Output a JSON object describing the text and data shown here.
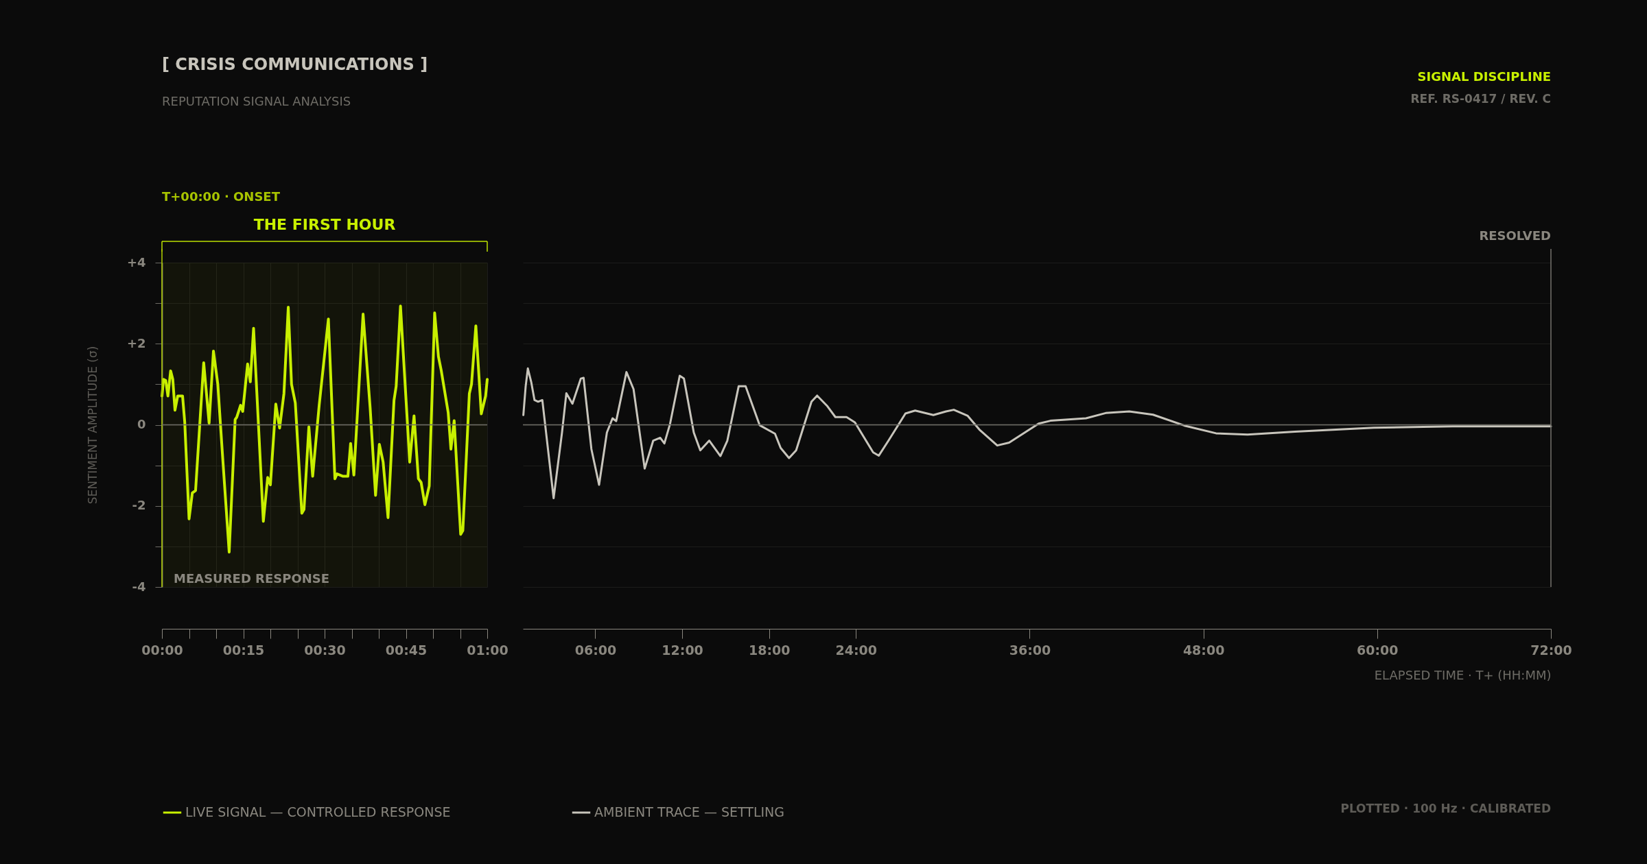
{
  "chart_data": [
    {
      "type": "line",
      "title": "[ CRISIS COMMUNICATIONS ]",
      "subtitle": "REPUTATION SIGNAL ANALYSIS",
      "ylabel": "SENTIMENT AMPLITUDE (σ)",
      "annotations": [
        "MEASURED RESPONSE"
      ],
      "xlim": [
        0,
        60
      ],
      "xticks": [
        {
          "value": 0,
          "label": "00:00"
        },
        {
          "value": 5,
          "label": null
        },
        {
          "value": 10,
          "label": null
        },
        {
          "value": 15,
          "label": "00:15"
        },
        {
          "value": 20,
          "label": null
        },
        {
          "value": 25,
          "label": null
        },
        {
          "value": 30,
          "label": "00:30"
        },
        {
          "value": 35,
          "label": null
        },
        {
          "value": 40,
          "label": null
        },
        {
          "value": 45,
          "label": "00:45"
        },
        {
          "value": 50,
          "label": null
        },
        {
          "value": 55,
          "label": null
        },
        {
          "value": 60,
          "label": "01:00"
        }
      ],
      "ylim": [
        -4,
        4
      ],
      "yticks": [
        {
          "value": -4,
          "label": "-4"
        },
        {
          "value": -3,
          "label": null
        },
        {
          "value": -2,
          "label": "-2"
        },
        {
          "value": -1,
          "label": null
        },
        0,
        {
          "value": 1,
          "label": null
        },
        {
          "value": 2,
          "label": "+2"
        },
        {
          "value": 3,
          "label": null
        },
        {
          "value": 4,
          "label": "+4"
        }
      ],
      "grid": true,
      "legend": "bottom",
      "bands": [
        {
          "axis": "x",
          "from": 0,
          "to": 60,
          "label": "THE FIRST HOUR",
          "color": "#c8f000"
        }
      ],
      "ref_lines": [
        {
          "axis": "x",
          "value": 0,
          "label": "T+00:00 · ONSET",
          "color": "#a8c400"
        },
        {
          "axis": "y",
          "value": 0,
          "color": "#6e6c66"
        }
      ],
      "series": [
        {
          "name": "LIVE SIGNAL — CONTROLLED RESPONSE",
          "color": "#c8f000",
          "x": [
            0,
            0.3,
            0.7,
            1.1,
            1.6,
            2.0,
            2.4,
            2.9,
            3.8,
            4.2,
            5.0,
            5.6,
            6.2,
            7.7,
            8.7,
            9.5,
            10.3,
            11.2,
            12.4,
            13.5,
            13.8,
            14.5,
            14.9,
            15.8,
            16.3,
            16.9,
            18.7,
            19.5,
            20.0,
            21.0,
            21.7,
            22.5,
            23.3,
            23.9,
            24.6,
            25.8,
            26.2,
            27.1,
            27.8,
            29.0,
            30.7,
            31.9,
            32.3,
            33.4,
            34.3,
            34.8,
            35.4,
            37.1,
            38.4,
            39.4,
            40.1,
            40.8,
            41.7,
            42.8,
            43.2,
            44.0,
            45.7,
            46.5,
            47.3,
            47.8,
            48.5,
            49.3,
            50.3,
            51.0,
            51.5,
            52.8,
            53.3,
            53.9,
            55.1,
            55.5,
            56.7,
            57.1,
            57.9,
            58.9,
            59.7,
            60.0
          ],
          "values": [
            0.71,
            1.12,
            1.09,
            0.71,
            1.33,
            1.12,
            0.36,
            0.71,
            0.71,
            0.07,
            -2.32,
            -1.68,
            -1.62,
            1.53,
            0.04,
            1.82,
            1.0,
            -0.81,
            -3.14,
            0.13,
            0.19,
            0.48,
            0.33,
            1.5,
            1.06,
            2.38,
            -2.38,
            -1.3,
            -1.48,
            0.51,
            -0.08,
            0.77,
            2.9,
            1.0,
            0.54,
            -2.18,
            -2.09,
            -0.05,
            -1.27,
            0.48,
            2.61,
            -1.33,
            -1.21,
            -1.27,
            -1.27,
            -0.46,
            -1.24,
            2.73,
            0.42,
            -1.74,
            -0.48,
            -0.92,
            -2.29,
            0.6,
            0.95,
            2.93,
            -0.92,
            0.22,
            -1.33,
            -1.42,
            -1.97,
            -1.51,
            2.76,
            1.68,
            1.35,
            0.3,
            -0.6,
            0.1,
            -2.7,
            -2.61,
            0.77,
            1.0,
            2.44,
            0.27,
            0.71,
            1.12
          ]
        }
      ]
    },
    {
      "type": "line",
      "xlabel": "ELAPSED TIME · T+ (HH:MM)",
      "annotations": [
        "SIGNAL DISCIPLINE",
        "REF. RS-0417 / REV. C",
        "PLOTTED · 100 Hz · CALIBRATED"
      ],
      "xlim": [
        1,
        72
      ],
      "xticks": [
        {
          "value": 6,
          "label": "06:00"
        },
        {
          "value": 12,
          "label": "12:00"
        },
        {
          "value": 18,
          "label": "18:00"
        },
        {
          "value": 24,
          "label": "24:00"
        },
        {
          "value": 36,
          "label": "36:00"
        },
        {
          "value": 48,
          "label": "48:00"
        },
        {
          "value": 60,
          "label": "60:00"
        },
        {
          "value": 72,
          "label": "72:00"
        }
      ],
      "ylim": [
        -4,
        4
      ],
      "yticks": [
        -4,
        -3,
        -2,
        -1,
        0,
        1,
        2,
        3,
        4
      ],
      "tick_labels": "x",
      "grid": "y",
      "legend": "bottom",
      "ref_lines": [
        {
          "axis": "x",
          "value": 72,
          "label": "RESOLVED",
          "color": "#6e6c66"
        },
        {
          "axis": "y",
          "value": 0,
          "color": "#6e6c66"
        }
      ],
      "series": [
        {
          "name": "AMBIENT TRACE — SETTLING",
          "color": "#c8c5bc",
          "x": [
            1.03,
            1.19,
            1.34,
            1.57,
            1.8,
            2.05,
            2.34,
            3.12,
            3.7,
            4.0,
            4.42,
            5.0,
            5.19,
            5.73,
            6.26,
            6.8,
            7.19,
            7.44,
            8.15,
            8.64,
            9.41,
            10.0,
            10.48,
            10.77,
            11.16,
            11.83,
            12.12,
            12.8,
            13.25,
            13.87,
            14.64,
            15.12,
            15.9,
            16.38,
            17.35,
            18.41,
            18.8,
            19.38,
            19.87,
            20.93,
            21.32,
            22.0,
            22.58,
            23.35,
            23.93,
            25.19,
            25.58,
            26.25,
            27.42,
            28.09,
            29.35,
            30.22,
            30.76,
            31.72,
            32.53,
            33.76,
            34.58,
            36.62,
            37.43,
            39.89,
            41.25,
            42.88,
            44.52,
            46.69,
            48.87,
            51.05,
            54.32,
            59.77,
            65.21,
            72
          ],
          "values": [
            0.24,
            0.95,
            1.39,
            1.06,
            0.61,
            0.57,
            0.61,
            -1.81,
            -0.19,
            0.78,
            0.52,
            1.14,
            1.16,
            -0.6,
            -1.48,
            -0.19,
            0.16,
            0.09,
            1.3,
            0.88,
            -1.08,
            -0.39,
            -0.32,
            -0.46,
            0.02,
            1.21,
            1.14,
            -0.19,
            -0.63,
            -0.39,
            -0.77,
            -0.39,
            0.95,
            0.95,
            -0.01,
            -0.22,
            -0.57,
            -0.82,
            -0.63,
            0.57,
            0.72,
            0.47,
            0.19,
            0.19,
            0.06,
            -0.68,
            -0.76,
            -0.39,
            0.28,
            0.35,
            0.24,
            0.33,
            0.37,
            0.22,
            -0.12,
            -0.51,
            -0.44,
            0.03,
            0.1,
            0.16,
            0.29,
            0.33,
            0.25,
            -0.02,
            -0.21,
            -0.24,
            -0.17,
            -0.07,
            -0.04,
            -0.04
          ]
        }
      ]
    }
  ]
}
